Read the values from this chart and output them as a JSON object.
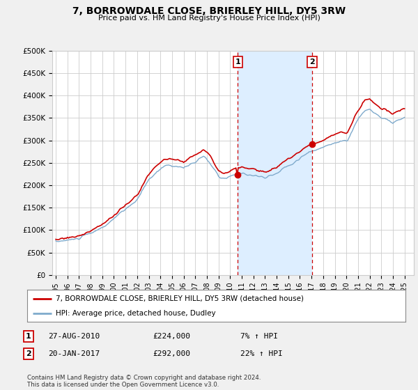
{
  "title": "7, BORROWDALE CLOSE, BRIERLEY HILL, DY5 3RW",
  "subtitle": "Price paid vs. HM Land Registry's House Price Index (HPI)",
  "ylabel_ticks": [
    0,
    50000,
    100000,
    150000,
    200000,
    250000,
    300000,
    350000,
    400000,
    450000,
    500000
  ],
  "ylabel_labels": [
    "£0",
    "£50K",
    "£100K",
    "£150K",
    "£200K",
    "£250K",
    "£300K",
    "£350K",
    "£400K",
    "£450K",
    "£500K"
  ],
  "ylim": [
    0,
    500000
  ],
  "xlim_start": 1994.7,
  "xlim_end": 2025.8,
  "background_color": "#f0f0f0",
  "plot_bg_color": "#ffffff",
  "grid_color": "#cccccc",
  "red_line_color": "#cc0000",
  "blue_line_color": "#7faacc",
  "shade_color": "#ddeeff",
  "sale1_year": 2010.65,
  "sale1_price": 224000,
  "sale2_year": 2017.05,
  "sale2_price": 292000,
  "sale1_label": "1",
  "sale2_label": "2",
  "legend_line1": "7, BORROWDALE CLOSE, BRIERLEY HILL, DY5 3RW (detached house)",
  "legend_line2": "HPI: Average price, detached house, Dudley",
  "table_row1": [
    "1",
    "27-AUG-2010",
    "£224,000",
    "7% ↑ HPI"
  ],
  "table_row2": [
    "2",
    "20-JAN-2017",
    "£292,000",
    "22% ↑ HPI"
  ],
  "footnote": "Contains HM Land Registry data © Crown copyright and database right 2024.\nThis data is licensed under the Open Government Licence v3.0.",
  "hpi_x": [
    1995.0,
    1995.1,
    1995.2,
    1995.3,
    1995.4,
    1995.5,
    1995.6,
    1995.7,
    1995.8,
    1995.9,
    1996.0,
    1996.1,
    1996.2,
    1996.3,
    1996.4,
    1996.5,
    1996.6,
    1996.7,
    1996.8,
    1996.9,
    1997.0,
    1997.1,
    1997.2,
    1997.3,
    1997.4,
    1997.5,
    1997.6,
    1997.7,
    1997.8,
    1997.9,
    1998.0,
    1998.1,
    1998.2,
    1998.3,
    1998.4,
    1998.5,
    1998.6,
    1998.7,
    1998.8,
    1998.9,
    1999.0,
    1999.1,
    1999.2,
    1999.3,
    1999.4,
    1999.5,
    1999.6,
    1999.7,
    1999.8,
    1999.9,
    2000.0,
    2000.1,
    2000.2,
    2000.3,
    2000.4,
    2000.5,
    2000.6,
    2000.7,
    2000.8,
    2000.9,
    2001.0,
    2001.1,
    2001.2,
    2001.3,
    2001.4,
    2001.5,
    2001.6,
    2001.7,
    2001.8,
    2001.9,
    2002.0,
    2002.1,
    2002.2,
    2002.3,
    2002.4,
    2002.5,
    2002.6,
    2002.7,
    2002.8,
    2002.9,
    2003.0,
    2003.1,
    2003.2,
    2003.3,
    2003.4,
    2003.5,
    2003.6,
    2003.7,
    2003.8,
    2003.9,
    2004.0,
    2004.1,
    2004.2,
    2004.3,
    2004.4,
    2004.5,
    2004.6,
    2004.7,
    2004.8,
    2004.9,
    2005.0,
    2005.1,
    2005.2,
    2005.3,
    2005.4,
    2005.5,
    2005.6,
    2005.7,
    2005.8,
    2005.9,
    2006.0,
    2006.1,
    2006.2,
    2006.3,
    2006.4,
    2006.5,
    2006.6,
    2006.7,
    2006.8,
    2006.9,
    2007.0,
    2007.1,
    2007.2,
    2007.3,
    2007.4,
    2007.5,
    2007.6,
    2007.7,
    2007.8,
    2007.9,
    2008.0,
    2008.1,
    2008.2,
    2008.3,
    2008.4,
    2008.5,
    2008.6,
    2008.7,
    2008.8,
    2008.9,
    2009.0,
    2009.1,
    2009.2,
    2009.3,
    2009.4,
    2009.5,
    2009.6,
    2009.7,
    2009.8,
    2009.9,
    2010.0,
    2010.1,
    2010.2,
    2010.3,
    2010.4,
    2010.5,
    2010.6,
    2010.7,
    2010.8,
    2010.9,
    2011.0,
    2011.1,
    2011.2,
    2011.3,
    2011.4,
    2011.5,
    2011.6,
    2011.7,
    2011.8,
    2011.9,
    2012.0,
    2012.1,
    2012.2,
    2012.3,
    2012.4,
    2012.5,
    2012.6,
    2012.7,
    2012.8,
    2012.9,
    2013.0,
    2013.1,
    2013.2,
    2013.3,
    2013.4,
    2013.5,
    2013.6,
    2013.7,
    2013.8,
    2013.9,
    2014.0,
    2014.1,
    2014.2,
    2014.3,
    2014.4,
    2014.5,
    2014.6,
    2014.7,
    2014.8,
    2014.9,
    2015.0,
    2015.1,
    2015.2,
    2015.3,
    2015.4,
    2015.5,
    2015.6,
    2015.7,
    2015.8,
    2015.9,
    2016.0,
    2016.1,
    2016.2,
    2016.3,
    2016.4,
    2016.5,
    2016.6,
    2016.7,
    2016.8,
    2016.9,
    2017.0,
    2017.1,
    2017.2,
    2017.3,
    2017.4,
    2017.5,
    2017.6,
    2017.7,
    2017.8,
    2017.9,
    2018.0,
    2018.1,
    2018.2,
    2018.3,
    2018.4,
    2018.5,
    2018.6,
    2018.7,
    2018.8,
    2018.9,
    2019.0,
    2019.1,
    2019.2,
    2019.3,
    2019.4,
    2019.5,
    2019.6,
    2019.7,
    2019.8,
    2019.9,
    2020.0,
    2020.1,
    2020.2,
    2020.3,
    2020.4,
    2020.5,
    2020.6,
    2020.7,
    2020.8,
    2020.9,
    2021.0,
    2021.1,
    2021.2,
    2021.3,
    2021.4,
    2021.5,
    2021.6,
    2021.7,
    2021.8,
    2021.9,
    2022.0,
    2022.1,
    2022.2,
    2022.3,
    2022.4,
    2022.5,
    2022.6,
    2022.7,
    2022.8,
    2022.9,
    2023.0,
    2023.1,
    2023.2,
    2023.3,
    2023.4,
    2023.5,
    2023.6,
    2023.7,
    2023.8,
    2023.9,
    2024.0,
    2024.1,
    2024.2,
    2024.3,
    2024.4,
    2024.5,
    2024.6,
    2024.7,
    2024.8,
    2024.9,
    2025.0
  ],
  "xtick_years": [
    1995,
    1996,
    1997,
    1998,
    1999,
    2000,
    2001,
    2002,
    2003,
    2004,
    2005,
    2006,
    2007,
    2008,
    2009,
    2010,
    2011,
    2012,
    2013,
    2014,
    2015,
    2016,
    2017,
    2018,
    2019,
    2020,
    2021,
    2022,
    2023,
    2024,
    2025
  ]
}
